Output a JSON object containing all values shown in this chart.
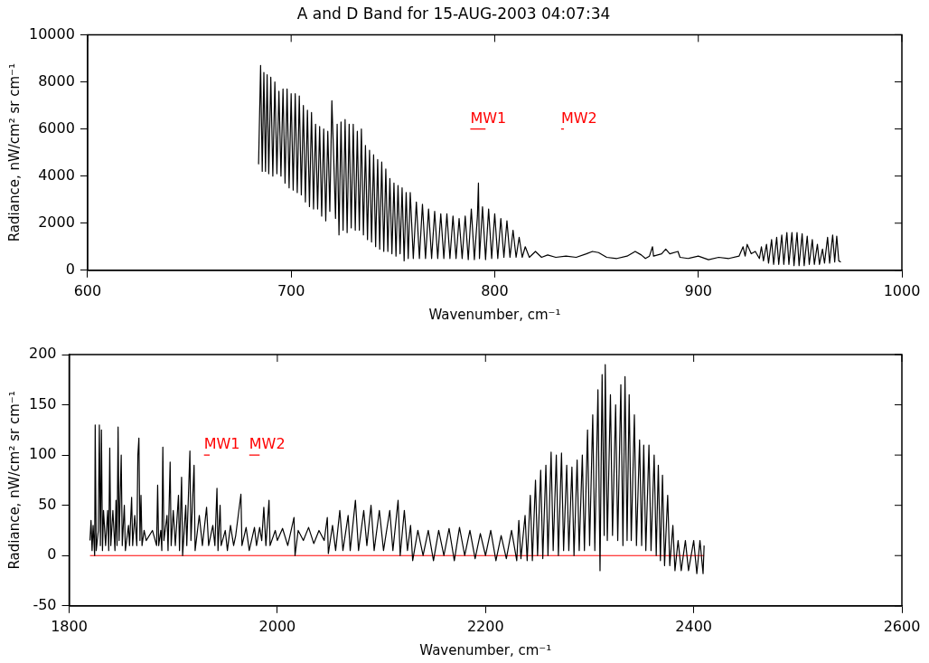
{
  "chart_data": [
    {
      "type": "line",
      "title": "A and D Band for 15-AUG-2003 04:07:34",
      "xlabel": "Wavenumber, cm⁻¹",
      "ylabel": "Radiance, nW/cm² sr cm⁻¹",
      "xlim": [
        600,
        1000
      ],
      "xticks": [
        600,
        700,
        800,
        900,
        1000
      ],
      "ylim": [
        0,
        10000
      ],
      "yticks": [
        0,
        2000,
        4000,
        6000,
        8000,
        10000
      ],
      "grid": false,
      "legend": false,
      "marker": "none",
      "line_style": "solid",
      "annotations": [
        {
          "text": "MW1",
          "x": 788,
          "y": 6000
        },
        {
          "text": "MW2",
          "x": 832.6,
          "y": 6000
        }
      ],
      "series": [
        {
          "color": "#000000",
          "x": [
            684,
            685,
            685.8,
            686.6,
            687.4,
            688.2,
            689,
            690,
            691,
            692,
            693,
            694,
            695,
            696,
            697,
            698,
            699,
            700,
            701,
            702,
            703,
            704,
            705,
            706,
            707,
            708,
            709,
            710,
            711,
            712,
            713,
            714,
            715,
            716,
            717,
            718,
            719,
            720,
            721,
            721.8,
            722.6,
            723.5,
            724.5,
            725.5,
            726.5,
            727.5,
            728.5,
            729.5,
            730.5,
            731.5,
            732.5,
            733.5,
            734.5,
            735.5,
            736.5,
            737.5,
            738.5,
            739.5,
            740.5,
            741.5,
            742.5,
            743.5,
            744.5,
            745.5,
            746.5,
            747.5,
            748.5,
            749.5,
            750.5,
            751.5,
            752.5,
            753.5,
            754.5,
            755.5,
            756.5,
            757.5,
            758.5,
            760,
            761.5,
            763,
            764.5,
            766,
            767.5,
            769,
            770.5,
            772,
            773.5,
            775,
            776.5,
            778,
            779.5,
            781,
            782.5,
            784,
            785.5,
            787,
            788.5,
            790,
            791.5,
            792,
            792.5,
            794,
            795.5,
            797,
            798.5,
            800,
            801.5,
            803,
            804.5,
            806,
            807.5,
            809,
            810.5,
            812,
            813.5,
            815,
            817,
            820,
            823,
            826,
            830,
            835,
            840,
            845,
            848,
            851,
            855,
            860,
            865,
            869,
            872,
            874,
            876,
            877.5,
            878,
            882,
            884,
            886,
            890,
            891,
            895,
            900,
            905,
            910,
            915,
            920,
            922,
            923,
            924,
            926,
            928,
            930,
            931,
            932,
            933.5,
            934.5,
            936,
            937,
            938.5,
            939.5,
            941,
            942,
            943.5,
            944.5,
            946,
            947,
            948.5,
            949.5,
            951,
            952,
            953.5,
            954.5,
            956,
            957,
            958.5,
            959.5,
            961,
            962,
            963.5,
            964.5,
            966,
            967,
            968,
            969,
            970
          ],
          "values": [
            4500,
            8700,
            4200,
            8400,
            4200,
            8300,
            4100,
            8200,
            4000,
            8000,
            4100,
            7600,
            4000,
            7700,
            3700,
            7700,
            3500,
            7500,
            3400,
            7500,
            3300,
            7400,
            3200,
            7000,
            2900,
            6800,
            2700,
            6700,
            2600,
            6200,
            2600,
            6100,
            2300,
            6000,
            2100,
            5900,
            2500,
            7200,
            4500,
            2200,
            6200,
            1500,
            6300,
            1700,
            6400,
            1600,
            6200,
            1800,
            6200,
            1700,
            5900,
            1700,
            6000,
            1500,
            5300,
            1300,
            5100,
            1200,
            4900,
            1000,
            4700,
            900,
            4600,
            800,
            4300,
            800,
            3900,
            700,
            3700,
            600,
            3600,
            700,
            3500,
            400,
            3300,
            500,
            3300,
            500,
            2900,
            500,
            2800,
            500,
            2600,
            500,
            2500,
            500,
            2400,
            500,
            2400,
            500,
            2300,
            500,
            2200,
            500,
            2300,
            450,
            2600,
            450,
            2300,
            3700,
            500,
            2700,
            450,
            2600,
            500,
            2400,
            500,
            2200,
            550,
            2100,
            550,
            1700,
            550,
            1400,
            550,
            1000,
            550,
            800,
            550,
            650,
            550,
            600,
            550,
            700,
            800,
            750,
            550,
            500,
            600,
            800,
            650,
            500,
            600,
            1000,
            600,
            700,
            900,
            700,
            800,
            550,
            500,
            600,
            450,
            550,
            500,
            600,
            1000,
            600,
            1100,
            700,
            800,
            500,
            1000,
            400,
            1100,
            300,
            1300,
            250,
            1400,
            250,
            1500,
            250,
            1600,
            250,
            1600,
            200,
            1600,
            200,
            1550,
            200,
            1450,
            250,
            1300,
            250,
            1100,
            250,
            900,
            300,
            1400,
            300,
            1500,
            350,
            1450,
            400,
            350
          ]
        },
        {
          "color": "#ff0000",
          "x": [
            788,
            795.5
          ],
          "values": [
            6000,
            6000
          ]
        },
        {
          "color": "#ff0000",
          "x": [
            832.6,
            834
          ],
          "values": [
            6000,
            6000
          ]
        }
      ]
    },
    {
      "type": "line",
      "xlabel": "Wavenumber, cm⁻¹",
      "ylabel": "Radiance, nW/cm² sr cm⁻¹",
      "xlim": [
        1800,
        2600
      ],
      "xticks": [
        1800,
        2000,
        2200,
        2400,
        2600
      ],
      "ylim": [
        -50,
        200
      ],
      "yticks": [
        -50,
        0,
        50,
        100,
        150,
        200
      ],
      "grid": false,
      "legend": false,
      "marker": "none",
      "line_style": "solid",
      "annotations": [
        {
          "text": "MW1",
          "x": 1929.5,
          "y": 100
        },
        {
          "text": "MW2",
          "x": 1973,
          "y": 100
        }
      ],
      "series": [
        {
          "color": "#000000",
          "x": [
            1820,
            1821,
            1822,
            1823,
            1824.5,
            1825,
            1826,
            1828,
            1829,
            1830,
            1831,
            1832,
            1833,
            1835,
            1837,
            1838,
            1839,
            1840,
            1842,
            1844,
            1845,
            1846,
            1847,
            1848,
            1850,
            1851,
            1853,
            1854,
            1857,
            1858,
            1860,
            1861,
            1863,
            1865,
            1866,
            1867,
            1868,
            1869,
            1870,
            1872,
            1874,
            1880,
            1884,
            1885,
            1886,
            1888,
            1889,
            1890,
            1891,
            1894,
            1895,
            1897,
            1898,
            1900,
            1902,
            1905,
            1906,
            1908,
            1909,
            1912,
            1913,
            1916,
            1917,
            1920,
            1921,
            1925,
            1928,
            1932,
            1934,
            1938,
            1940,
            1942,
            1943,
            1945,
            1946,
            1950,
            1952,
            1955,
            1958,
            1960,
            1965,
            1966,
            1970,
            1973,
            1978,
            1980,
            1983,
            1985,
            1987,
            1989,
            1992,
            1993,
            1998,
            2000,
            2005,
            2010,
            2016,
            2017,
            2020,
            2025,
            2030,
            2035,
            2040,
            2045,
            2048,
            2049,
            2053,
            2056,
            2060,
            2063,
            2068,
            2070,
            2075,
            2078,
            2083,
            2086,
            2090,
            2093,
            2098,
            2102,
            2108,
            2111,
            2116,
            2118,
            2122,
            2125,
            2128,
            2130,
            2135,
            2140,
            2145,
            2150,
            2155,
            2160,
            2165,
            2170,
            2175,
            2180,
            2185,
            2190,
            2195,
            2200,
            2205,
            2210,
            2215,
            2220,
            2225,
            2230,
            2232,
            2234,
            2238,
            2240,
            2243,
            2245,
            2248,
            2250,
            2253,
            2255,
            2258,
            2260,
            2263,
            2265,
            2268,
            2270,
            2273,
            2275,
            2278,
            2280,
            2283,
            2285,
            2288,
            2290,
            2293,
            2295,
            2298,
            2300,
            2303,
            2305,
            2308,
            2310,
            2312,
            2314,
            2315,
            2317,
            2320,
            2322,
            2325,
            2327,
            2330,
            2332,
            2334,
            2336,
            2338,
            2340,
            2343,
            2345,
            2348,
            2350,
            2352,
            2354,
            2357,
            2359,
            2362,
            2364,
            2366,
            2368,
            2370,
            2372,
            2375,
            2377,
            2380,
            2382,
            2385,
            2388,
            2392,
            2395,
            2400,
            2403,
            2406,
            2409,
            2410
          ],
          "values": [
            15,
            35,
            5,
            30,
            0,
            130,
            5,
            25,
            130,
            10,
            125,
            5,
            45,
            10,
            45,
            5,
            107,
            10,
            45,
            5,
            55,
            10,
            128,
            15,
            100,
            10,
            50,
            5,
            30,
            10,
            58,
            10,
            40,
            10,
            100,
            117,
            15,
            60,
            10,
            25,
            15,
            25,
            10,
            70,
            10,
            25,
            5,
            108,
            15,
            40,
            5,
            93,
            10,
            45,
            10,
            60,
            5,
            78,
            0,
            50,
            10,
            104,
            15,
            90,
            5,
            40,
            10,
            48,
            10,
            30,
            10,
            67,
            5,
            50,
            10,
            25,
            5,
            30,
            10,
            20,
            61,
            10,
            28,
            5,
            28,
            10,
            28,
            15,
            48,
            10,
            55,
            10,
            25,
            15,
            27,
            10,
            38,
            0,
            25,
            15,
            28,
            12,
            25,
            15,
            38,
            2,
            30,
            5,
            45,
            5,
            40,
            5,
            55,
            5,
            45,
            10,
            50,
            5,
            45,
            5,
            45,
            5,
            55,
            0,
            45,
            5,
            30,
            -5,
            25,
            0,
            25,
            -5,
            25,
            0,
            27,
            -5,
            28,
            0,
            25,
            -3,
            22,
            0,
            25,
            -5,
            20,
            -3,
            25,
            -5,
            35,
            -3,
            40,
            -5,
            60,
            -5,
            75,
            0,
            85,
            -3,
            90,
            0,
            103,
            5,
            100,
            0,
            102,
            5,
            90,
            5,
            88,
            0,
            95,
            5,
            100,
            5,
            125,
            10,
            140,
            5,
            165,
            -15,
            180,
            20,
            190,
            15,
            160,
            20,
            150,
            15,
            170,
            10,
            178,
            15,
            160,
            15,
            140,
            10,
            115,
            10,
            110,
            5,
            110,
            5,
            100,
            0,
            90,
            -5,
            80,
            -10,
            60,
            -10,
            30,
            -15,
            15,
            -15,
            15,
            -15,
            15,
            -18,
            15,
            -18,
            10
          ]
        },
        {
          "color": "#ff0000",
          "x": [
            1820,
            2410
          ],
          "values": [
            0,
            0
          ]
        },
        {
          "color": "#ff0000",
          "x": [
            1929.5,
            1935
          ],
          "values": [
            100,
            100
          ]
        },
        {
          "color": "#ff0000",
          "x": [
            1973,
            1983
          ],
          "values": [
            100,
            100
          ]
        }
      ]
    }
  ]
}
